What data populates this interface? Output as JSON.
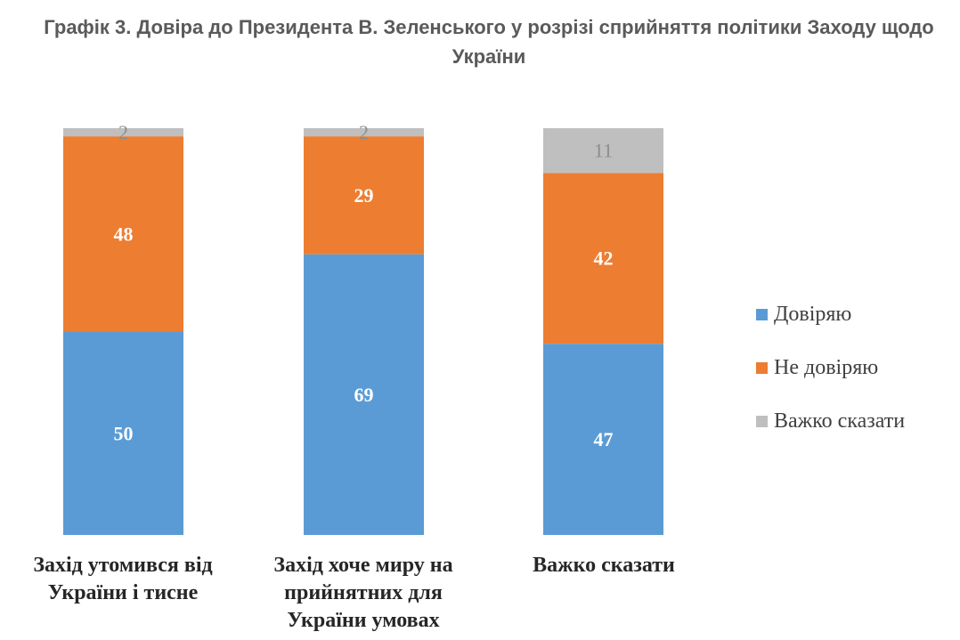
{
  "title": "Графік 3. Довіра до Президента В. Зеленського у розрізі сприйняття політики Заходу щодо України",
  "chart_data": {
    "type": "bar",
    "stacked": true,
    "categories": [
      "Захід утомився від України і тисне",
      "Захід хоче миру на прийнятних для України умовах",
      "Важко сказати"
    ],
    "series": [
      {
        "name": "Довіряю",
        "color": "#5b9bd5",
        "label_color": "#ffffff",
        "values": [
          50,
          69,
          47
        ]
      },
      {
        "name": "Не довіряю",
        "color": "#ed7d31",
        "label_color": "#ffffff",
        "values": [
          48,
          29,
          42
        ]
      },
      {
        "name": "Важко сказати",
        "color": "#bfbfbf",
        "label_color": "#8c8c8c",
        "values": [
          2,
          2,
          11
        ]
      }
    ],
    "ylim": [
      0,
      100
    ],
    "grid": false,
    "legend_position": "right"
  }
}
